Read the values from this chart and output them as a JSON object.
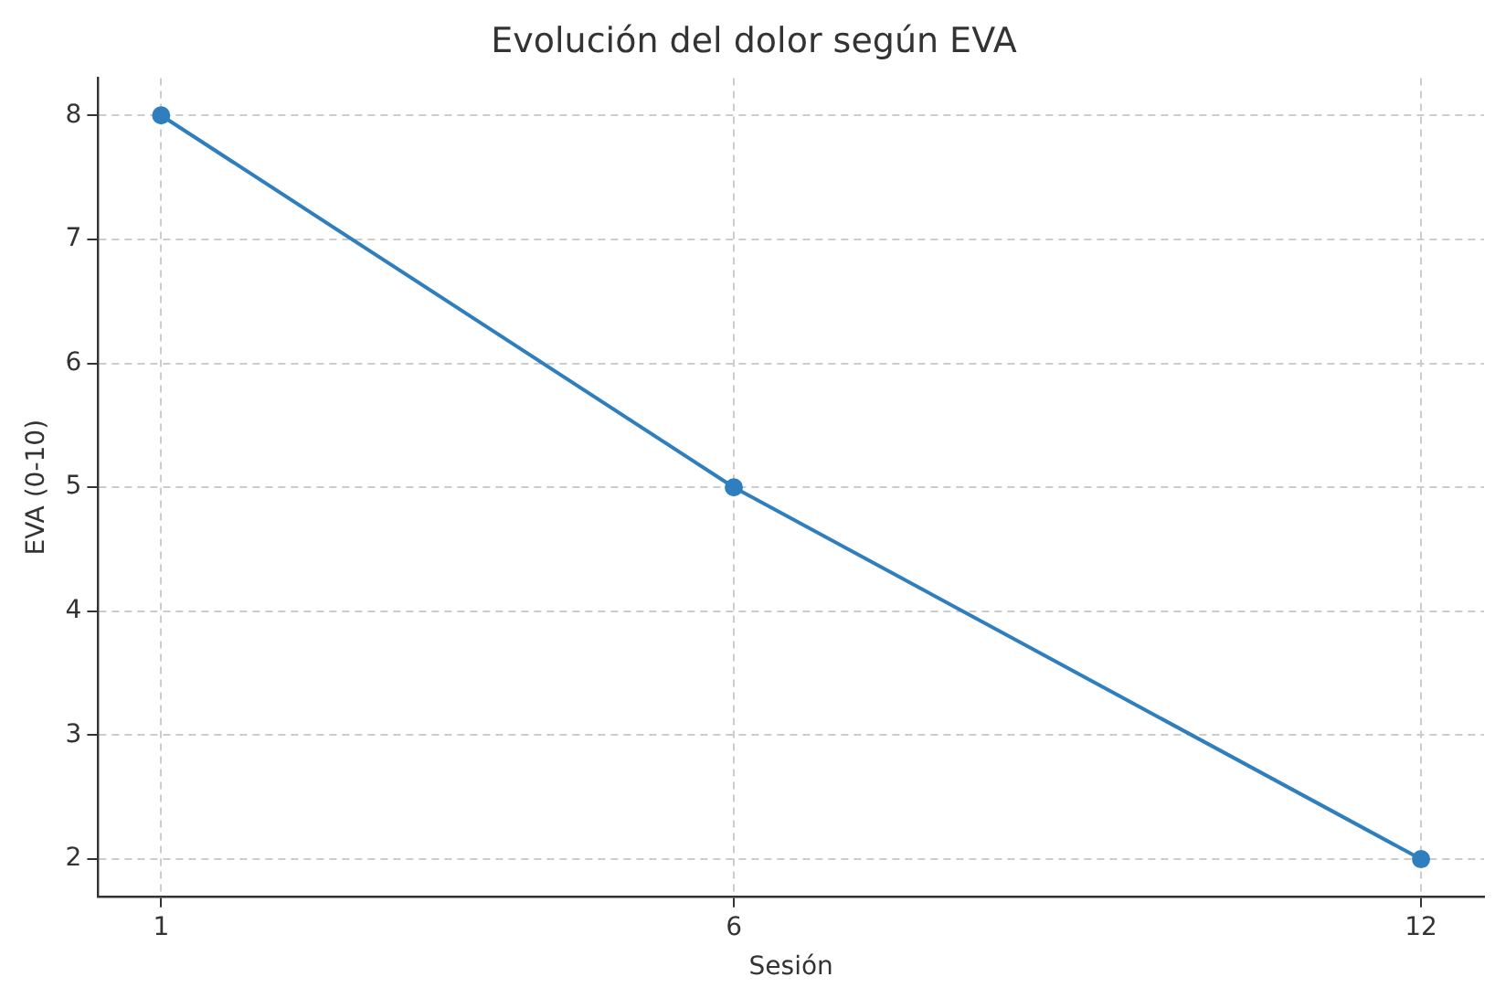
{
  "chart_data": {
    "type": "line",
    "title": "Evolución del dolor según EVA",
    "xlabel": "Sesión",
    "ylabel": "EVA (0-10)",
    "x": [
      1,
      6,
      12
    ],
    "series": [
      {
        "color": "#2f7fbf",
        "values": [
          8,
          5,
          2
        ]
      }
    ],
    "xlim": [
      0.45,
      12.55
    ],
    "xticks": [
      1,
      6,
      12
    ],
    "ylim": [
      1.7,
      8.3
    ],
    "yticks": [
      2,
      3,
      4,
      5,
      6,
      7,
      8
    ],
    "grid": true,
    "legend": false,
    "marker": "circle",
    "line_style": "solid"
  }
}
